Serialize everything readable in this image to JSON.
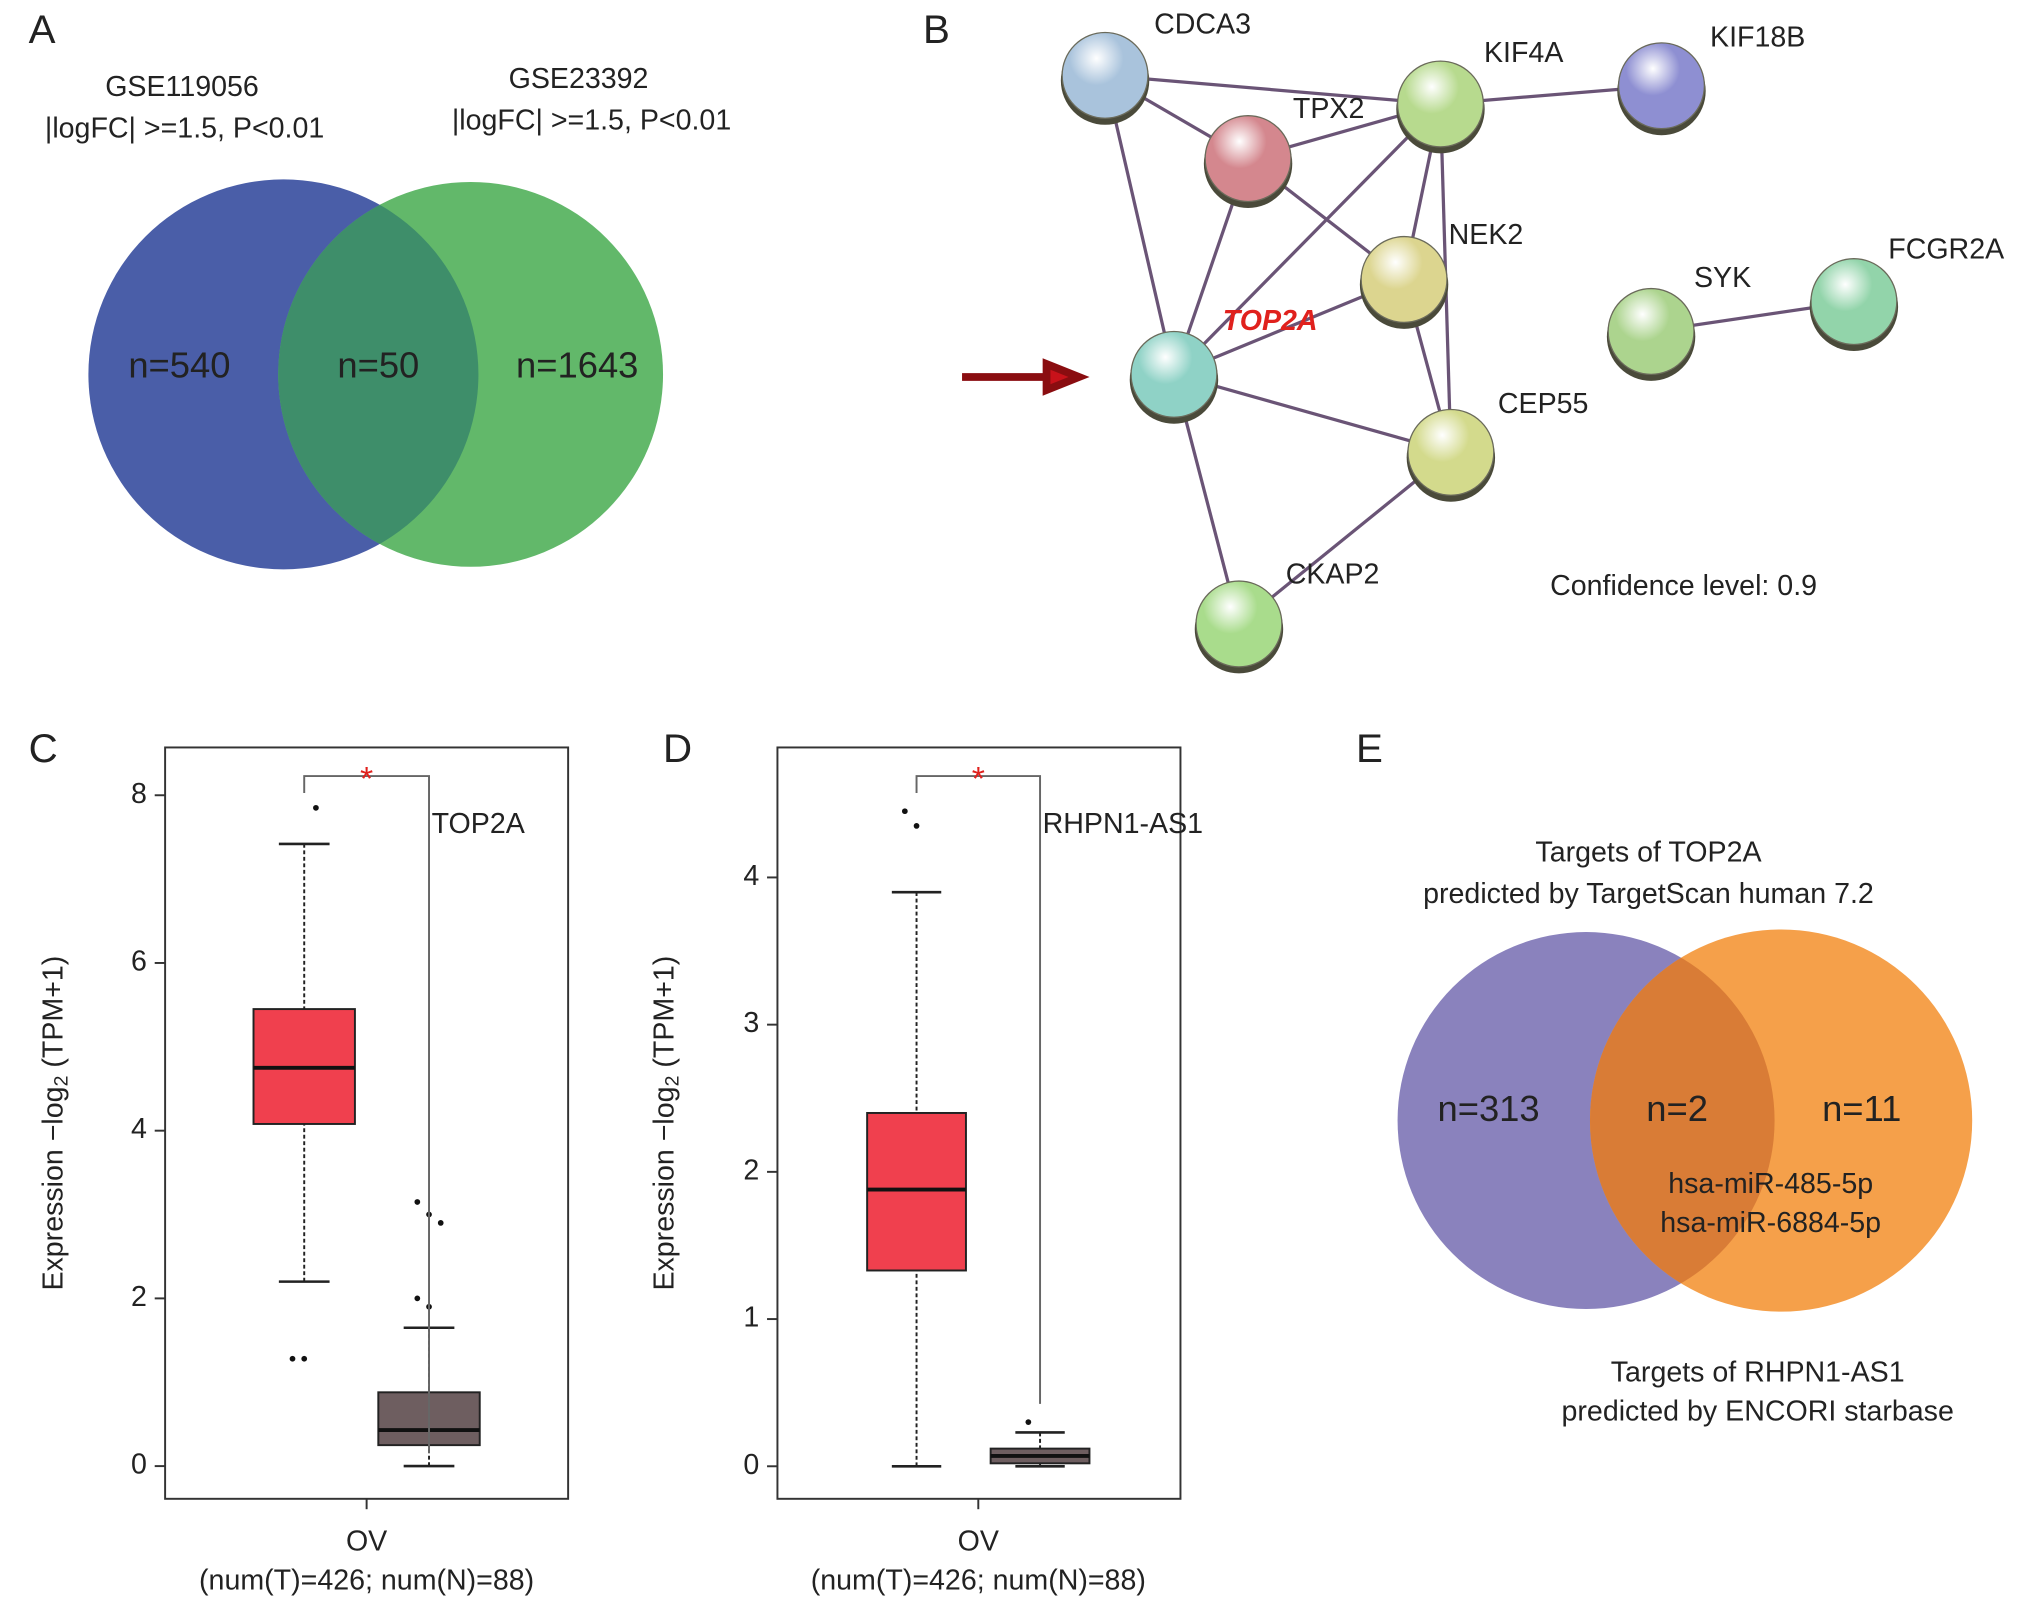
{
  "panel_a": {
    "label": "A",
    "sets": [
      {
        "name": "GSE119056",
        "criteria": "|logFC| >=1.5, P<0.01",
        "color": "#4a5ea8"
      },
      {
        "name": "GSE23392",
        "criteria": "|logFC| >=1.5, P<0.01",
        "color": "#62b86a"
      }
    ],
    "overlap_color": "#3e8e6a",
    "counts": {
      "left": "n=540",
      "overlap": "n=50",
      "right": "n=1643"
    }
  },
  "panel_b": {
    "label": "B",
    "nodes": [
      {
        "label": "CDCA3"
      },
      {
        "label": "TPX2"
      },
      {
        "label": "KIF4A"
      },
      {
        "label": "KIF18B"
      },
      {
        "label": "NEK2"
      },
      {
        "label": "TOP2A"
      },
      {
        "label": "CEP55"
      },
      {
        "label": "CKAP2"
      },
      {
        "label": "SYK"
      },
      {
        "label": "FCGR2A"
      }
    ],
    "note": "Confidence level: 0.9"
  },
  "panel_e": {
    "label": "E",
    "sets": [
      {
        "title": [
          "Targets of TOP2A",
          "predicted by TargetScan human 7.2"
        ],
        "color": "#8a82bd"
      },
      {
        "title": [
          "Targets of RHPN1-AS1",
          "predicted by ENCORI starbase"
        ],
        "color": "#f5a04a"
      }
    ],
    "overlap_color": "#d97c36",
    "counts": {
      "left": "n=313",
      "overlap": "n=2",
      "right": "n=11"
    },
    "overlap_items": [
      "hsa-miR-485-5p",
      "hsa-miR-6884-5p"
    ]
  },
  "chart_data": [
    {
      "type": "box",
      "panel": "C",
      "annotation": "TOP2A",
      "significance": "*",
      "categories": [
        "OV"
      ],
      "sample_note": "(num(T)=426; num(N)=88)",
      "ylabel": [
        "Expression −log",
        "2",
        " (TPM+1)"
      ],
      "ylim": [
        -0.39,
        8.57
      ],
      "yticks": [
        0,
        2,
        4,
        6,
        8
      ],
      "groups": [
        {
          "color": "#f0404e",
          "whisker_low": 2.2,
          "q1": 4.08,
          "median": 4.75,
          "q3": 5.45,
          "whisker_high": 7.42,
          "outliers": [
            1.28,
            1.28,
            7.85
          ]
        },
        {
          "color": "#6e5e60",
          "whisker_low": 0,
          "q1": 0.25,
          "median": 0.43,
          "q3": 0.88,
          "whisker_high": 1.65,
          "outliers": [
            3.15,
            3.0,
            2.9,
            2.0,
            1.9
          ]
        }
      ]
    },
    {
      "type": "box",
      "panel": "D",
      "annotation": "RHPN1-AS1",
      "significance": "*",
      "categories": [
        "OV"
      ],
      "sample_note": "(num(T)=426; num(N)=88)",
      "ylabel": [
        "Expression −log",
        "2",
        " (TPM+1)"
      ],
      "ylim": [
        -0.221,
        4.883
      ],
      "yticks": [
        0,
        1,
        2,
        3,
        4
      ],
      "groups": [
        {
          "color": "#f0404e",
          "whisker_low": 0,
          "q1": 1.33,
          "median": 1.88,
          "q3": 2.4,
          "whisker_high": 3.9,
          "outliers": [
            4.45,
            4.35
          ]
        },
        {
          "color": "#6e5e60",
          "whisker_low": 0,
          "q1": 0.02,
          "median": 0.07,
          "q3": 0.12,
          "whisker_high": 0.23,
          "outliers": [
            0.3
          ]
        }
      ]
    }
  ]
}
